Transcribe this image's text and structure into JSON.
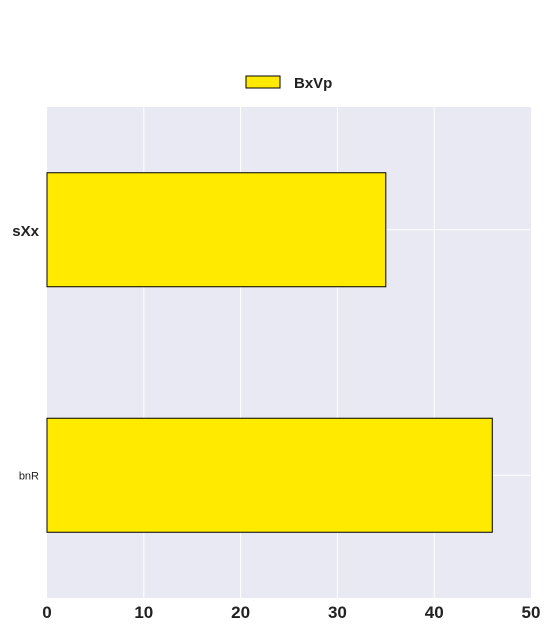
{
  "chart_data": {
    "type": "bar",
    "orientation": "horizontal",
    "categories": [
      "sXx",
      "bnR"
    ],
    "series": [
      {
        "name": "BxVp",
        "values": [
          35,
          46
        ],
        "color": "#ffea00",
        "edge_color": "#000000"
      }
    ],
    "xlim": [
      0,
      50
    ],
    "x_ticks": [
      "0",
      "10",
      "20",
      "30",
      "40",
      "50"
    ],
    "grid": true,
    "background_color": "#e8e9f2",
    "grid_color": "#ffffff",
    "legend_position": "top-center"
  }
}
